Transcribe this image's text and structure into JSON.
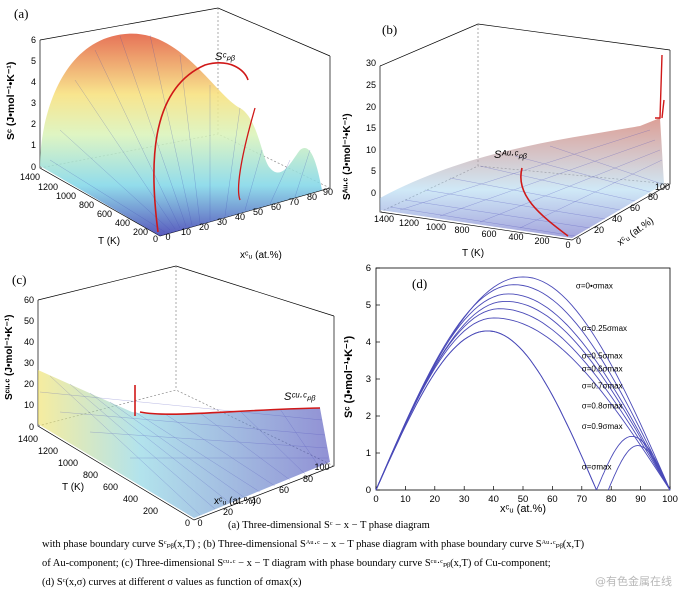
{
  "panels": {
    "a": {
      "label": "(a)",
      "zlabel": "Sᶜ (J•mol⁻¹•K⁻¹)",
      "ylabel": "T (K)",
      "xlabel": "xᶜᵤ (at.%)",
      "curve_label": "Sᶜₚᵦ",
      "z_ticks": [
        "0",
        "1",
        "2",
        "3",
        "4",
        "5",
        "6"
      ],
      "t_ticks": [
        "1400",
        "1200",
        "1000",
        "800",
        "600",
        "400",
        "200",
        "0"
      ],
      "x_ticks": [
        "0",
        "10",
        "20",
        "30",
        "40",
        "50",
        "60",
        "70",
        "80",
        "90"
      ]
    },
    "b": {
      "label": "(b)",
      "zlabel": "Sᴬᵘ·ᶜ (J•mol⁻¹•K⁻¹)",
      "ylabel": "T (K)",
      "xlabel": "xᶜᵤ (at.%)",
      "curve_label": "Sᴬᵘ·ᶜₚᵦ",
      "z_ticks": [
        "0",
        "5",
        "10",
        "15",
        "20",
        "25",
        "30"
      ],
      "t_ticks": [
        "1400",
        "1200",
        "1000",
        "800",
        "600",
        "400",
        "200",
        "0"
      ],
      "x_ticks": [
        "0",
        "20",
        "40",
        "60",
        "80",
        "100"
      ]
    },
    "c": {
      "label": "(c)",
      "zlabel": "Sᶜᵘ·ᶜ (J•mol⁻¹•K⁻¹)",
      "ylabel": "T (K)",
      "xlabel": "xᶜᵤ (at.%)",
      "curve_label": "Sᶜᵘ·ᶜₚᵦ",
      "z_ticks": [
        "0",
        "10",
        "20",
        "30",
        "40",
        "50",
        "60"
      ],
      "t_ticks": [
        "1400",
        "1200",
        "1000",
        "800",
        "600",
        "400",
        "200",
        "0"
      ],
      "x_ticks": [
        "0",
        "20",
        "40",
        "60",
        "80",
        "100"
      ]
    },
    "d": {
      "label": "(d)"
    }
  },
  "chart_data": {
    "type": "line",
    "title": "(d)",
    "xlabel": "xᶜᵤ (at.%)",
    "ylabel": "Sᶜ (J•mol⁻¹•K⁻¹)",
    "xlim": [
      0,
      100
    ],
    "ylim": [
      0,
      6
    ],
    "x_ticks": [
      0,
      10,
      20,
      30,
      40,
      50,
      60,
      70,
      80,
      90,
      100
    ],
    "y_ticks": [
      0,
      1,
      2,
      3,
      4,
      5,
      6
    ],
    "grid": false,
    "color": "#4a4ab8",
    "series": [
      {
        "name": "σ=0•σmax",
        "peak_x": 50,
        "peak_y": 5.76
      },
      {
        "name": "σ=0.25σmax",
        "peak_x": 47,
        "peak_y": 5.55
      },
      {
        "name": "σ=0.5σmax",
        "peak_x": 45,
        "peak_y": 5.3
      },
      {
        "name": "σ=0.6σmax",
        "peak_x": 44,
        "peak_y": 5.1
      },
      {
        "name": "σ=0.7σmax",
        "peak_x": 42,
        "peak_y": 4.9
      },
      {
        "name": "σ=0.8σmax",
        "peak_x": 40,
        "peak_y": 4.65
      },
      {
        "name": "σ=0.9σmax",
        "peak_x": 38,
        "peak_y": 4.3
      },
      {
        "name": "σ=σmax",
        "peak_x": 38,
        "peak_y": 4.3
      }
    ],
    "right_branch": [
      {
        "zero_x": 75,
        "peak_x": 87,
        "peak_y": 1.45
      },
      {
        "zero_x": 79,
        "peak_x": 89,
        "peak_y": 1.2
      }
    ],
    "annotations": [
      "σ=0•σmax",
      "σ=0.25σmax",
      "σ=0.5σmax",
      "σ=0.6σmax",
      "σ=0.7σmax",
      "σ=0.8σmax",
      "σ=0.9σmax",
      "σ=σmax"
    ]
  },
  "caption": {
    "line1": "(a)  Three-dimensional  Sᶜ − x − T   phase diagram",
    "line2": "with phase boundary curve   Sᶜₚᵦ(x,T) ; (b) Three-dimensional  Sᴬᵘ·ᶜ − x − T   phase diagram with phase boundary curve  Sᴬᵘ·ᶜₚᵦ(x,T)",
    "line3": "of  Au-component;  (c)  Three-dimensional   Sᶜᵘ·ᶜ − x − T   diagram  with  phase  boundary  curve   Sᶜᵘ·ᶜₚᵦ(x,T)   of  Cu-component;",
    "line4": "(d)   Sᶜ(x,σ)   curves at different σ values as function of   σmax(x)"
  },
  "watermark": "@有色金属在线"
}
